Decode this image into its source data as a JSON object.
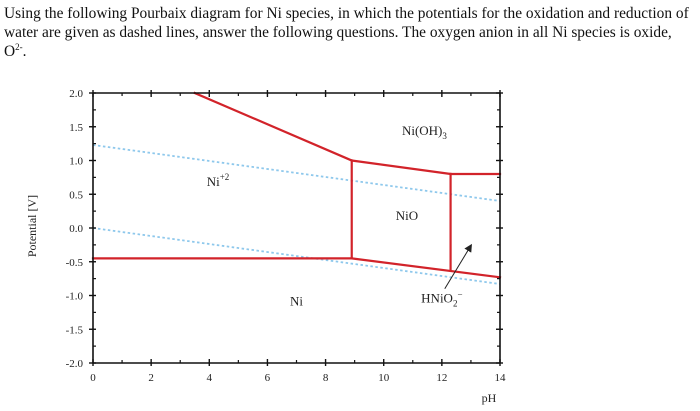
{
  "question": {
    "text_before_sup": "Using the following Pourbaix diagram for Ni species, in which the potentials for the oxidation and reduction of water are given as dashed lines, answer the following questions. The oxygen anion in all Ni species is oxide, O",
    "sup": "2-",
    "text_after_sup": "."
  },
  "chart_data": {
    "type": "line",
    "title": "",
    "xlabel": "pH",
    "ylabel": "Potential [V]",
    "xlim": [
      0,
      14
    ],
    "ylim": [
      -2.0,
      2.0
    ],
    "x_ticks": [
      0,
      2,
      4,
      6,
      8,
      10,
      12,
      14
    ],
    "x_tick_labels": [
      "0",
      "2",
      "4",
      "6",
      "8",
      "10",
      "12",
      "14"
    ],
    "y_ticks": [
      2.0,
      1.5,
      1.0,
      0.5,
      0.0,
      -0.5,
      -1.0,
      -1.5,
      -2.0
    ],
    "y_tick_labels": [
      "2.0",
      "1.5",
      "1.0",
      "0.5",
      "0.0",
      "-0.5",
      "-1.0",
      "-1.5",
      "-2.0"
    ],
    "grid": false,
    "boundary_color": "#d2232a",
    "water_line_color": "#8ec8ec",
    "boundaries": [
      {
        "x": [
          3.5,
          8.9
        ],
        "y": [
          2.0,
          1.0
        ]
      },
      {
        "x": [
          8.9,
          12.3
        ],
        "y": [
          1.0,
          0.8
        ]
      },
      {
        "x": [
          12.3,
          14.0
        ],
        "y": [
          0.8,
          0.8
        ]
      },
      {
        "x": [
          0.0,
          8.9
        ],
        "y": [
          -0.45,
          -0.45
        ]
      },
      {
        "x": [
          8.9,
          8.9
        ],
        "y": [
          -0.45,
          1.0
        ]
      },
      {
        "x": [
          12.3,
          12.3
        ],
        "y": [
          -0.62,
          0.8
        ]
      },
      {
        "x": [
          8.9,
          14.0
        ],
        "y": [
          -0.45,
          -0.73
        ]
      }
    ],
    "water_lines": [
      {
        "name": "O2/H2O",
        "x": [
          0.0,
          14.0
        ],
        "y": [
          1.23,
          0.4
        ]
      },
      {
        "name": "H2O/H2",
        "x": [
          0.0,
          14.0
        ],
        "y": [
          0.0,
          -0.83
        ]
      }
    ],
    "annotations": [
      {
        "label": "Ni(OH)",
        "sub": "3",
        "sup": "",
        "x": 11.4,
        "y": 1.38
      },
      {
        "label": "Ni",
        "sub": "",
        "sup": "+2",
        "x": 4.3,
        "y": 0.62
      },
      {
        "label": "NiO",
        "sub": "",
        "sup": "",
        "x": 10.8,
        "y": 0.12
      },
      {
        "label": "Ni",
        "sub": "",
        "sup": "",
        "x": 7.0,
        "y": -1.15
      },
      {
        "label": "HNiO",
        "sub": "2",
        "sup": "−",
        "x": 12.0,
        "y": -1.1
      }
    ],
    "arrow": {
      "from": [
        12.1,
        -0.9
      ],
      "to": [
        13.0,
        -0.26
      ]
    }
  }
}
